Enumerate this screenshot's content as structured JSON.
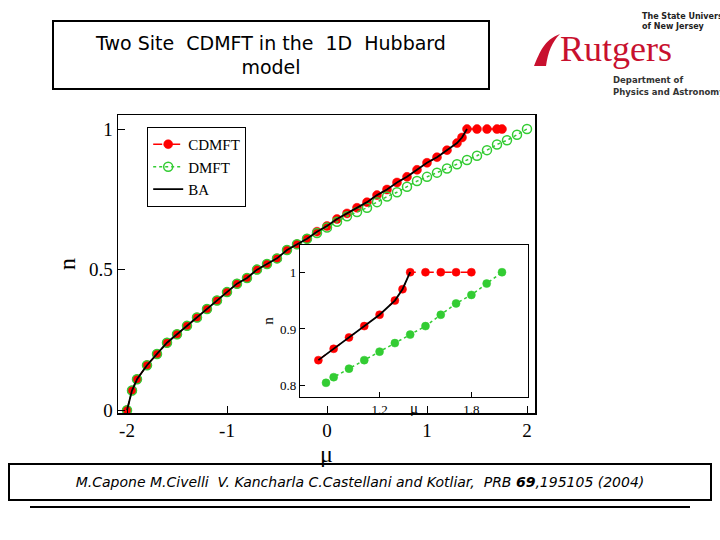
{
  "title": {
    "lines": [
      "Two Site  CDMFT in the  1D  Hubbard",
      "model"
    ]
  },
  "logo": {
    "university": [
      "The State University",
      "of New Jersey"
    ],
    "name": "Rutgers",
    "department": [
      "Department of",
      "Physics and Astronomy"
    ]
  },
  "citation": {
    "before": "M.Capone M.Civelli  V. Kancharla C.Castellani and Kotliar,  PRB ",
    "bold": "69",
    "after": ",195105 (2004)"
  },
  "chart_data": [
    {
      "type": "line",
      "x_label": "μ",
      "y_label": "n",
      "xlim": [
        -2.09,
        2.08
      ],
      "xticks": [
        -2,
        -1,
        0,
        1,
        2
      ],
      "ylim": [
        -0.01,
        1.05
      ],
      "yticks": [
        0,
        0.5,
        1
      ],
      "grid": false,
      "legend": "upper left",
      "series": [
        {
          "name": "CDMFT",
          "color": "#ff0000",
          "marker": "circle",
          "line_style": "dash",
          "x": [
            -2,
            -1.95,
            -1.9,
            -1.8,
            -1.7,
            -1.6,
            -1.5,
            -1.4,
            -1.3,
            -1.2,
            -1.1,
            -1.0,
            -0.9,
            -0.8,
            -0.7,
            -0.6,
            -0.5,
            -0.4,
            -0.3,
            -0.2,
            -0.1,
            0,
            0.1,
            0.2,
            0.3,
            0.4,
            0.5,
            0.6,
            0.7,
            0.8,
            0.9,
            1.0,
            1.1,
            1.2,
            1.3,
            1.35,
            1.4,
            1.5,
            1.6,
            1.7,
            1.75
          ],
          "values": [
            0,
            0.07,
            0.11,
            0.16,
            0.2,
            0.24,
            0.27,
            0.3,
            0.33,
            0.36,
            0.39,
            0.42,
            0.45,
            0.47,
            0.5,
            0.52,
            0.54,
            0.57,
            0.59,
            0.61,
            0.635,
            0.655,
            0.68,
            0.7,
            0.72,
            0.74,
            0.765,
            0.785,
            0.81,
            0.83,
            0.855,
            0.88,
            0.9,
            0.925,
            0.95,
            0.97,
            1,
            1,
            1,
            1,
            1
          ]
        },
        {
          "name": "DMFT",
          "color": "#33cc33",
          "marker": "circle-open",
          "line_style": "dot",
          "x": [
            -2,
            -1.95,
            -1.9,
            -1.8,
            -1.7,
            -1.6,
            -1.5,
            -1.4,
            -1.3,
            -1.2,
            -1.1,
            -1.0,
            -0.9,
            -0.8,
            -0.7,
            -0.6,
            -0.5,
            -0.4,
            -0.3,
            -0.2,
            -0.1,
            0,
            0.1,
            0.2,
            0.3,
            0.4,
            0.5,
            0.6,
            0.7,
            0.8,
            0.9,
            1.0,
            1.1,
            1.2,
            1.3,
            1.4,
            1.5,
            1.6,
            1.7,
            1.8,
            1.9,
            2.0
          ],
          "values": [
            0,
            0.07,
            0.11,
            0.16,
            0.2,
            0.24,
            0.27,
            0.3,
            0.33,
            0.36,
            0.39,
            0.42,
            0.45,
            0.47,
            0.5,
            0.52,
            0.54,
            0.57,
            0.59,
            0.61,
            0.63,
            0.65,
            0.67,
            0.69,
            0.705,
            0.72,
            0.74,
            0.76,
            0.775,
            0.795,
            0.815,
            0.83,
            0.845,
            0.86,
            0.875,
            0.89,
            0.905,
            0.925,
            0.945,
            0.96,
            0.98,
            1.0
          ]
        },
        {
          "name": "BA",
          "color": "#000000",
          "marker": "none",
          "line_style": "solid",
          "x": [
            -2,
            -1.95,
            -1.9,
            -1.8,
            -1.7,
            -1.6,
            -1.5,
            -1.4,
            -1.3,
            -1.2,
            -1.1,
            -1.0,
            -0.9,
            -0.8,
            -0.7,
            -0.6,
            -0.5,
            -0.4,
            -0.3,
            -0.2,
            -0.1,
            0,
            0.1,
            0.2,
            0.3,
            0.4,
            0.5,
            0.6,
            0.7,
            0.8,
            0.9,
            1.0,
            1.1,
            1.2,
            1.3,
            1.35,
            1.4
          ],
          "values": [
            0,
            0.07,
            0.11,
            0.16,
            0.2,
            0.24,
            0.27,
            0.3,
            0.33,
            0.36,
            0.39,
            0.42,
            0.45,
            0.47,
            0.5,
            0.52,
            0.54,
            0.57,
            0.59,
            0.61,
            0.635,
            0.655,
            0.68,
            0.7,
            0.72,
            0.74,
            0.765,
            0.785,
            0.81,
            0.83,
            0.855,
            0.88,
            0.9,
            0.925,
            0.95,
            0.97,
            1
          ]
        }
      ]
    },
    {
      "type": "line",
      "x_label": "μ",
      "y_label": "n",
      "xlim": [
        0.68,
        2.17
      ],
      "xticks": [
        1.2,
        1.8
      ],
      "ylim": [
        0.78,
        1.048
      ],
      "yticks": [
        0.8,
        0.9,
        1
      ],
      "grid": false,
      "series": [
        {
          "name": "CDMFT",
          "color": "#ff0000",
          "marker": "circle",
          "line_style": "dash",
          "x": [
            0.8,
            0.9,
            1.0,
            1.1,
            1.2,
            1.3,
            1.35,
            1.4,
            1.5,
            1.6,
            1.7,
            1.8
          ],
          "values": [
            0.845,
            0.865,
            0.885,
            0.905,
            0.925,
            0.95,
            0.97,
            1.0,
            1,
            1,
            1,
            1
          ]
        },
        {
          "name": "DMFT",
          "color": "#33cc33",
          "marker": "circle",
          "line_style": "dot",
          "x": [
            0.85,
            0.9,
            1.0,
            1.1,
            1.2,
            1.3,
            1.4,
            1.5,
            1.6,
            1.7,
            1.8,
            1.9,
            2.0
          ],
          "values": [
            0.805,
            0.815,
            0.83,
            0.845,
            0.86,
            0.875,
            0.89,
            0.905,
            0.925,
            0.945,
            0.96,
            0.98,
            1.0
          ]
        },
        {
          "name": "BA",
          "color": "#000000",
          "marker": "none",
          "line_style": "solid",
          "x": [
            0.8,
            0.9,
            1.0,
            1.1,
            1.2,
            1.3,
            1.35,
            1.4
          ],
          "values": [
            0.845,
            0.865,
            0.885,
            0.905,
            0.925,
            0.95,
            0.97,
            1.0
          ]
        }
      ]
    }
  ]
}
